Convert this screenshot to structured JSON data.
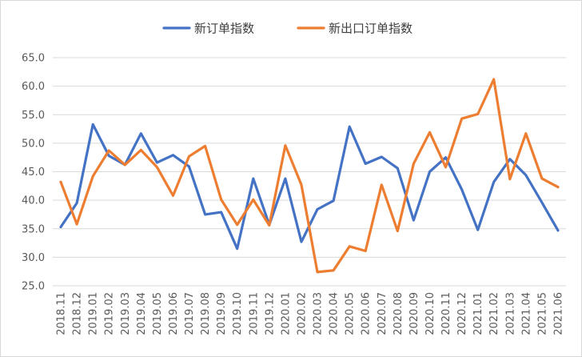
{
  "chart_data": {
    "type": "line",
    "title": "",
    "xlabel": "",
    "ylabel": "",
    "ylim": [
      25.0,
      65.0
    ],
    "yticks": [
      "65.0",
      "60.0",
      "55.0",
      "50.0",
      "45.0",
      "40.0",
      "35.0",
      "30.0",
      "25.0"
    ],
    "grid": "horizontal",
    "legend_position": "top",
    "categories": [
      "2018.11",
      "2018.12",
      "2019.01",
      "2019.02",
      "2019.03",
      "2019.04",
      "2019.05",
      "2019.06",
      "2019.07",
      "2019.08",
      "2019.09",
      "2019.10",
      "2019.11",
      "2019.12",
      "2020.01",
      "2020.02",
      "2020.03",
      "2020.04",
      "2020.05",
      "2020.06",
      "2020.07",
      "2020.08",
      "2020.09",
      "2020.10",
      "2020.11",
      "2020.12",
      "2021.01",
      "2021.02",
      "2021.03",
      "2021.04",
      "2021.05",
      "2021.06"
    ],
    "series": [
      {
        "name": "新订单指数",
        "color": "#4472c4",
        "values": [
          35.3,
          39.5,
          53.3,
          47.8,
          46.2,
          51.7,
          46.6,
          47.9,
          45.9,
          37.5,
          37.9,
          31.5,
          43.8,
          35.7,
          43.8,
          32.7,
          38.4,
          39.9,
          52.9,
          46.4,
          47.6,
          45.6,
          36.5,
          45.0,
          47.5,
          41.9,
          34.8,
          43.2,
          47.2,
          44.4,
          39.6,
          34.7
        ]
      },
      {
        "name": "新出口订单指数",
        "color": "#ed7d31",
        "values": [
          43.2,
          35.8,
          44.2,
          48.7,
          46.2,
          48.8,
          45.8,
          40.8,
          47.7,
          49.5,
          40.1,
          35.7,
          40.1,
          35.6,
          49.6,
          42.7,
          27.4,
          27.7,
          31.9,
          31.1,
          42.7,
          34.6,
          46.4,
          51.9,
          45.8,
          54.3,
          55.1,
          61.2,
          43.7,
          51.7,
          43.8,
          42.3
        ]
      }
    ]
  }
}
